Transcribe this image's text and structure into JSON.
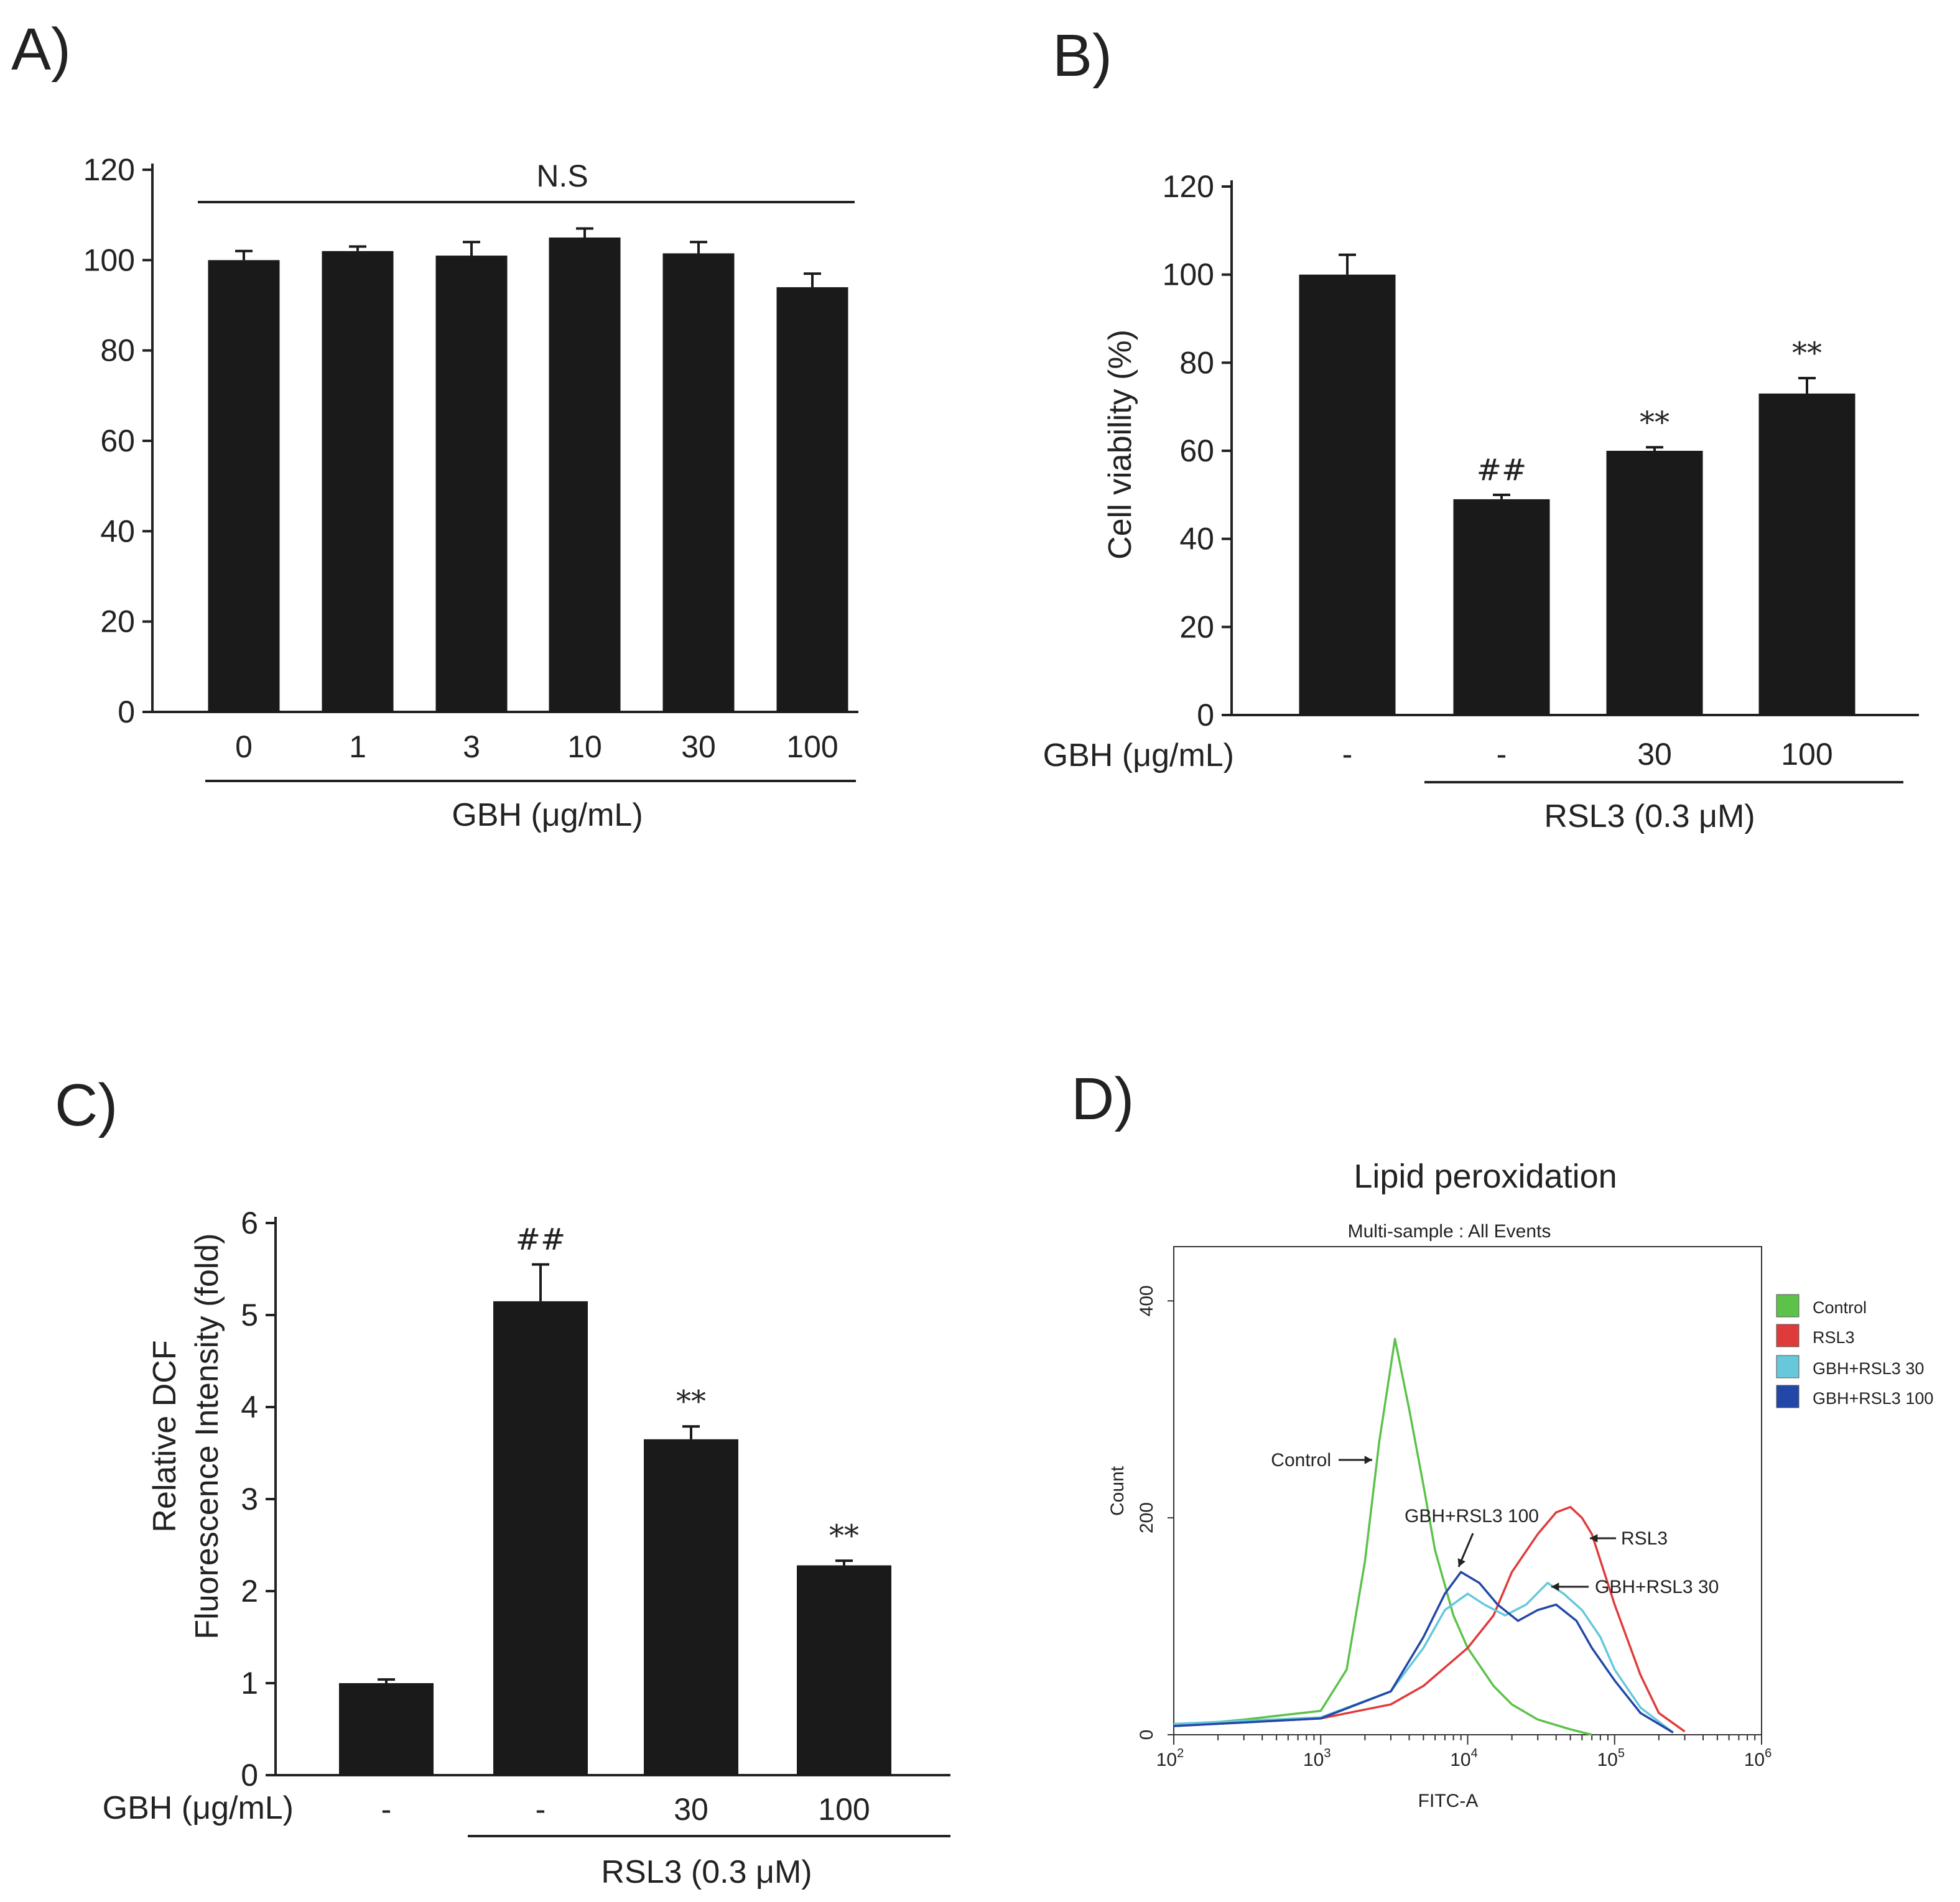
{
  "colors": {
    "bar": "#1a1a1a",
    "axis": "#222222",
    "control": "#5cc24a",
    "rsl3": "#e03b3b",
    "gbh_rsl3_30": "#66c8da",
    "gbh_rsl3_100": "#2347a8"
  },
  "chart_data": [
    {
      "panel": "A)",
      "type": "bar",
      "categories": [
        "0",
        "1",
        "3",
        "10",
        "30",
        "100"
      ],
      "values": [
        100,
        102,
        101,
        105,
        101.5,
        94
      ],
      "errors": [
        2,
        1,
        3,
        2,
        2.5,
        3
      ],
      "yticks": [
        "0",
        "20",
        "40",
        "60",
        "80",
        "100",
        "120"
      ],
      "ylim": [
        0,
        120
      ],
      "xlabel": "GBH (μg/mL)",
      "ylabel": "",
      "annotation": "N.S"
    },
    {
      "panel": "B)",
      "type": "bar",
      "categories": [
        "-",
        "-",
        "30",
        "100"
      ],
      "values": [
        100,
        49,
        60,
        73
      ],
      "errors": [
        4.5,
        1,
        0.8,
        3.5
      ],
      "significance": [
        "",
        "##",
        "**",
        "**"
      ],
      "yticks": [
        "0",
        "20",
        "40",
        "60",
        "80",
        "100",
        "120"
      ],
      "ylim": [
        0,
        120
      ],
      "ylabel": "Cell  viability (%)",
      "row_label": "GBH (μg/mL)",
      "group_label": "RSL3 (0.3 μM)"
    },
    {
      "panel": "C)",
      "type": "bar",
      "categories": [
        "-",
        "-",
        "30",
        "100"
      ],
      "values": [
        1.0,
        5.15,
        3.65,
        2.28
      ],
      "errors": [
        0.04,
        0.4,
        0.14,
        0.05
      ],
      "significance": [
        "",
        "##",
        "**",
        "**"
      ],
      "yticks": [
        "0",
        "1",
        "2",
        "3",
        "4",
        "5",
        "6"
      ],
      "ylim": [
        0,
        6
      ],
      "ylabel_lines": [
        "Relative DCF",
        "Fluorescence Intensity (fold)"
      ],
      "row_label": "GBH (μg/mL)",
      "group_label": "RSL3 (0.3 μM)"
    },
    {
      "panel": "D)",
      "type": "line",
      "title": "Lipid peroxidation",
      "subtitle": "Multi-sample : All Events",
      "xlabel": "FITC-A",
      "ylabel": "Count",
      "x_scale": "log",
      "xlim": [
        100,
        1000000
      ],
      "ylim": [
        0,
        450
      ],
      "yticks": [
        "0",
        "200",
        "400"
      ],
      "xticks": [
        {
          "base": "10",
          "exp": "2"
        },
        {
          "base": "10",
          "exp": "3"
        },
        {
          "base": "10",
          "exp": "4"
        },
        {
          "base": "10",
          "exp": "5"
        },
        {
          "base": "10",
          "exp": "6"
        }
      ],
      "legend_position": "right",
      "series": [
        {
          "name": "Control",
          "color": "#5cc24a",
          "x": [
            100,
            300,
            1000,
            1500,
            2000,
            2500,
            3000,
            3200,
            4000,
            5000,
            6000,
            8000,
            10000,
            15000,
            20000,
            30000,
            50000,
            70000
          ],
          "y": [
            8,
            14,
            22,
            60,
            160,
            270,
            340,
            365,
            300,
            230,
            170,
            110,
            80,
            45,
            28,
            14,
            5,
            0
          ]
        },
        {
          "name": "RSL3",
          "color": "#e03b3b",
          "x": [
            100,
            1000,
            3000,
            5000,
            10000,
            15000,
            20000,
            30000,
            40000,
            50000,
            60000,
            70000,
            100000,
            150000,
            200000,
            300000
          ],
          "y": [
            8,
            15,
            28,
            45,
            80,
            110,
            150,
            185,
            205,
            210,
            200,
            185,
            120,
            55,
            20,
            3
          ]
        },
        {
          "name": "GBH+RSL3 30",
          "color": "#66c8da",
          "x": [
            100,
            1000,
            3000,
            5000,
            7000,
            10000,
            13000,
            18000,
            25000,
            35000,
            45000,
            60000,
            80000,
            100000,
            150000,
            250000
          ],
          "y": [
            10,
            16,
            40,
            80,
            115,
            130,
            120,
            110,
            120,
            140,
            130,
            115,
            90,
            60,
            25,
            2
          ]
        },
        {
          "name": "GBH+RSL3 100",
          "color": "#2347a8",
          "x": [
            100,
            1000,
            3000,
            5000,
            7000,
            9000,
            12000,
            16000,
            22000,
            30000,
            40000,
            55000,
            70000,
            100000,
            150000,
            250000
          ],
          "y": [
            8,
            15,
            40,
            90,
            130,
            150,
            140,
            120,
            105,
            115,
            120,
            105,
            80,
            50,
            20,
            2
          ]
        }
      ],
      "annotations": [
        "Control",
        "GBH+RSL3 100",
        "RSL3",
        "GBH+RSL3 30"
      ]
    }
  ]
}
